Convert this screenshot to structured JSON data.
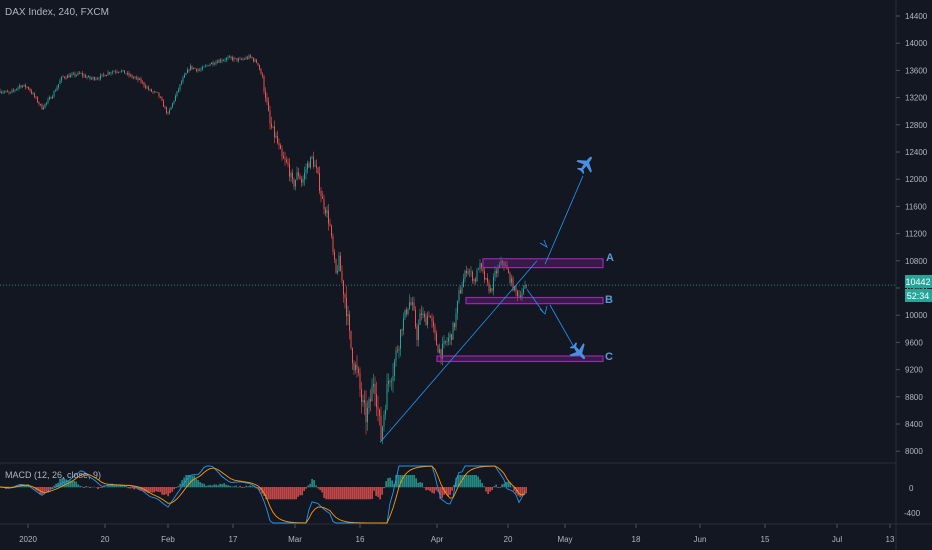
{
  "header": {
    "title": "DAX Index, 240, FXCM"
  },
  "price_axis": {
    "ticks": [
      "14400",
      "14000",
      "13600",
      "13200",
      "12800",
      "12400",
      "12000",
      "11600",
      "11200",
      "10800",
      "10400",
      "10000",
      "9600",
      "9200",
      "8800",
      "8400",
      "8000"
    ],
    "last_price": "10442",
    "countdown": "52:34"
  },
  "indicator": {
    "label": "MACD (12, 26, close, 9)",
    "ticks": [
      "0",
      "-400"
    ]
  },
  "time_axis": {
    "ticks": [
      "2020",
      "20",
      "Feb",
      "17",
      "Mar",
      "16",
      "Apr",
      "20",
      "May",
      "18",
      "Jun",
      "15",
      "Jul",
      "13"
    ]
  },
  "annotations": {
    "zone_a": "A",
    "zone_b": "B",
    "zone_c": "C"
  },
  "colors": {
    "background": "#131722",
    "up": "#26a69a",
    "down": "#ef5350",
    "zone": "#9c27b0",
    "drawing": "#2196f3",
    "price_line": "#26a69a"
  },
  "chart_data": {
    "type": "candlestick",
    "title": "DAX Index, 240, FXCM",
    "ylim": [
      7700,
      14600
    ],
    "path": [
      [
        0,
        13300
      ],
      [
        10,
        13260
      ],
      [
        20,
        13380
      ],
      [
        28,
        13350
      ],
      [
        35,
        13200
      ],
      [
        42,
        13050
      ],
      [
        48,
        13150
      ],
      [
        55,
        13300
      ],
      [
        62,
        13500
      ],
      [
        70,
        13520
      ],
      [
        80,
        13550
      ],
      [
        90,
        13480
      ],
      [
        100,
        13500
      ],
      [
        110,
        13580
      ],
      [
        120,
        13600
      ],
      [
        130,
        13520
      ],
      [
        140,
        13450
      ],
      [
        150,
        13300
      ],
      [
        158,
        13250
      ],
      [
        163,
        13100
      ],
      [
        168,
        12950
      ],
      [
        175,
        13200
      ],
      [
        182,
        13450
      ],
      [
        190,
        13650
      ],
      [
        200,
        13600
      ],
      [
        210,
        13700
      ],
      [
        220,
        13750
      ],
      [
        230,
        13780
      ],
      [
        240,
        13750
      ],
      [
        250,
        13800
      ],
      [
        258,
        13700
      ],
      [
        262,
        13500
      ],
      [
        266,
        13200
      ],
      [
        270,
        12800
      ],
      [
        276,
        12600
      ],
      [
        282,
        12300
      ],
      [
        288,
        12200
      ],
      [
        293,
        11900
      ],
      [
        298,
        12100
      ],
      [
        302,
        11950
      ],
      [
        307,
        12200
      ],
      [
        312,
        12300
      ],
      [
        317,
        12100
      ],
      [
        322,
        11700
      ],
      [
        327,
        11500
      ],
      [
        330,
        11300
      ],
      [
        333,
        10900
      ],
      [
        336,
        10600
      ],
      [
        339,
        10800
      ],
      [
        342,
        10500
      ],
      [
        346,
        10200
      ],
      [
        350,
        9600
      ],
      [
        354,
        9300
      ],
      [
        358,
        9100
      ],
      [
        362,
        8700
      ],
      [
        366,
        8500
      ],
      [
        370,
        8700
      ],
      [
        374,
        9100
      ],
      [
        378,
        8600
      ],
      [
        381,
        8200
      ],
      [
        385,
        8700
      ],
      [
        389,
        9100
      ],
      [
        393,
        9200
      ],
      [
        397,
        9500
      ],
      [
        401,
        9800
      ],
      [
        405,
        10000
      ],
      [
        409,
        10200
      ],
      [
        413,
        10100
      ],
      [
        417,
        9700
      ],
      [
        421,
        10050
      ],
      [
        425,
        9900
      ],
      [
        429,
        10050
      ],
      [
        433,
        9800
      ],
      [
        437,
        9550
      ],
      [
        441,
        9450
      ],
      [
        446,
        9600
      ],
      [
        451,
        9700
      ],
      [
        455,
        9900
      ],
      [
        459,
        10300
      ],
      [
        463,
        10500
      ],
      [
        467,
        10700
      ],
      [
        471,
        10600
      ],
      [
        475,
        10500
      ],
      [
        479,
        10750
      ],
      [
        483,
        10600
      ],
      [
        487,
        10450
      ],
      [
        491,
        10350
      ],
      [
        495,
        10600
      ],
      [
        499,
        10700
      ],
      [
        503,
        10800
      ],
      [
        507,
        10650
      ],
      [
        511,
        10500
      ],
      [
        515,
        10350
      ],
      [
        519,
        10300
      ],
      [
        523,
        10350
      ],
      [
        527,
        10442
      ]
    ],
    "volatility": [
      [
        0,
        60
      ],
      [
        260,
        60
      ],
      [
        262,
        170
      ],
      [
        340,
        170
      ],
      [
        342,
        320
      ],
      [
        395,
        320
      ],
      [
        400,
        200
      ],
      [
        460,
        200
      ],
      [
        462,
        140
      ],
      [
        530,
        140
      ]
    ],
    "zones": [
      {
        "label": "A",
        "x0": 483,
        "x1": 603,
        "y0": 10700,
        "y1": 10830
      },
      {
        "label": "B",
        "x0": 466,
        "x1": 603,
        "y0": 10170,
        "y1": 10260
      },
      {
        "label": "C",
        "x0": 437,
        "x1": 603,
        "y0": 9320,
        "y1": 9400
      }
    ],
    "lines": [
      {
        "x1": 380,
        "y1": 8130,
        "x2": 537,
        "y2": 10800
      },
      {
        "x1": 545,
        "y1": 10750,
        "x2": 583,
        "y2": 12050
      },
      {
        "x1": 527,
        "y1": 10380,
        "x2": 543,
        "y2": 10050
      },
      {
        "x1": 550,
        "y1": 10150,
        "x2": 577,
        "y2": 9450
      }
    ],
    "price_line": 10442
  }
}
